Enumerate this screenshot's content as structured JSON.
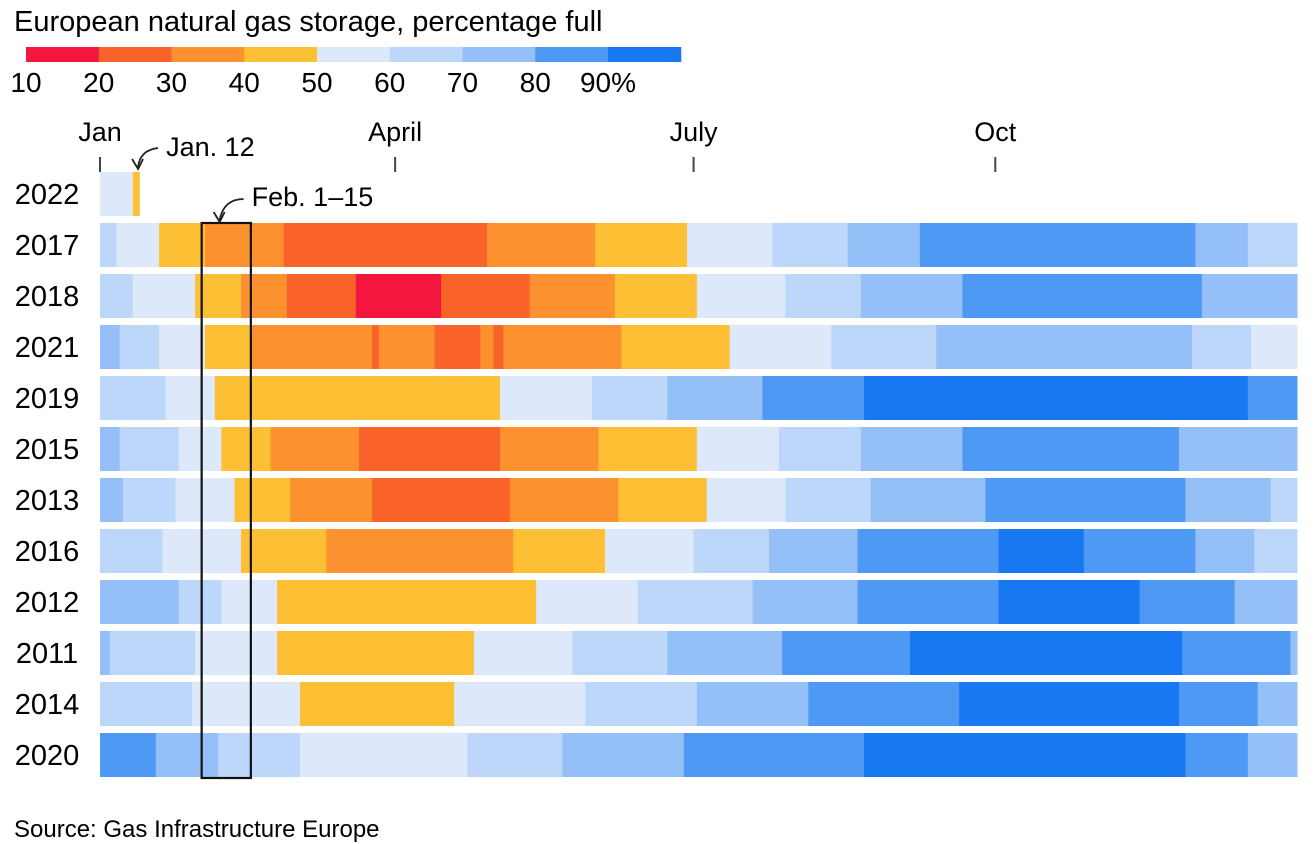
{
  "chart_data": {
    "type": "heatmap",
    "title": "European natural gas storage, percentage full",
    "source": "Source: Gas Infrastructure Europe",
    "legend": {
      "ticks": [
        "10",
        "20",
        "30",
        "40",
        "50",
        "60",
        "70",
        "80",
        "90%"
      ],
      "bins": [
        {
          "from": 10,
          "to": 20,
          "color": "#f5163f"
        },
        {
          "from": 20,
          "to": 30,
          "color": "#f9632a"
        },
        {
          "from": 30,
          "to": 40,
          "color": "#fb922f"
        },
        {
          "from": 40,
          "to": 50,
          "color": "#fdbf34"
        },
        {
          "from": 50,
          "to": 60,
          "color": "#dde9fb"
        },
        {
          "from": 60,
          "to": 70,
          "color": "#bcd7fa"
        },
        {
          "from": 70,
          "to": 80,
          "color": "#94c0f7"
        },
        {
          "from": 80,
          "to": 90,
          "color": "#4e99f4"
        },
        {
          "from": 90,
          "to": 100,
          "color": "#1778f2"
        }
      ]
    },
    "x_axis": {
      "type": "day-of-year",
      "range": [
        1,
        366
      ],
      "ticks": [
        {
          "label": "Jan",
          "day": 1
        },
        {
          "label": "April",
          "day": 91
        },
        {
          "label": "July",
          "day": 182
        },
        {
          "label": "Oct",
          "day": 274
        }
      ]
    },
    "annotations": [
      {
        "label": "Jan. 12",
        "day": 12,
        "rows": [
          "2022"
        ]
      },
      {
        "label": "Feb. 1–15",
        "start_day": 32,
        "end_day": 46,
        "rows": [
          "2017",
          "2020"
        ]
      }
    ],
    "rows": [
      {
        "year": "2022",
        "segments": [
          [
            1,
            11,
            55
          ],
          [
            11,
            12,
            45
          ]
        ]
      },
      {
        "year": "2017",
        "segments": [
          [
            1,
            6,
            65
          ],
          [
            6,
            19,
            55
          ],
          [
            19,
            33,
            45
          ],
          [
            33,
            57,
            35
          ],
          [
            57,
            119,
            25
          ],
          [
            119,
            152,
            35
          ],
          [
            152,
            180,
            45
          ],
          [
            180,
            206,
            55
          ],
          [
            206,
            229,
            65
          ],
          [
            229,
            251,
            75
          ],
          [
            251,
            335,
            85
          ],
          [
            335,
            351,
            75
          ],
          [
            351,
            366,
            65
          ]
        ]
      },
      {
        "year": "2018",
        "segments": [
          [
            1,
            11,
            65
          ],
          [
            11,
            30,
            55
          ],
          [
            30,
            44,
            45
          ],
          [
            44,
            58,
            35
          ],
          [
            58,
            79,
            25
          ],
          [
            79,
            105,
            15
          ],
          [
            105,
            132,
            25
          ],
          [
            132,
            158,
            35
          ],
          [
            158,
            183,
            45
          ],
          [
            183,
            210,
            55
          ],
          [
            210,
            233,
            65
          ],
          [
            233,
            264,
            75
          ],
          [
            264,
            337,
            85
          ],
          [
            337,
            366,
            75
          ]
        ]
      },
      {
        "year": "2021",
        "segments": [
          [
            1,
            7,
            75
          ],
          [
            7,
            19,
            65
          ],
          [
            19,
            33,
            55
          ],
          [
            33,
            47,
            45
          ],
          [
            47,
            84,
            35
          ],
          [
            84,
            86,
            25
          ],
          [
            86,
            103,
            35
          ],
          [
            103,
            117,
            25
          ],
          [
            117,
            121,
            35
          ],
          [
            121,
            124,
            25
          ],
          [
            124,
            160,
            35
          ],
          [
            160,
            193,
            45
          ],
          [
            193,
            224,
            55
          ],
          [
            224,
            256,
            65
          ],
          [
            256,
            334,
            75
          ],
          [
            334,
            352,
            65
          ],
          [
            352,
            366,
            55
          ]
        ]
      },
      {
        "year": "2019",
        "segments": [
          [
            1,
            21,
            65
          ],
          [
            21,
            36,
            55
          ],
          [
            36,
            123,
            45
          ],
          [
            123,
            151,
            55
          ],
          [
            151,
            174,
            65
          ],
          [
            174,
            203,
            75
          ],
          [
            203,
            234,
            85
          ],
          [
            234,
            351,
            95
          ],
          [
            351,
            366,
            85
          ]
        ]
      },
      {
        "year": "2015",
        "segments": [
          [
            1,
            7,
            75
          ],
          [
            7,
            25,
            65
          ],
          [
            25,
            38,
            55
          ],
          [
            38,
            53,
            45
          ],
          [
            53,
            80,
            35
          ],
          [
            80,
            123,
            25
          ],
          [
            123,
            153,
            35
          ],
          [
            153,
            183,
            45
          ],
          [
            183,
            208,
            55
          ],
          [
            208,
            233,
            65
          ],
          [
            233,
            264,
            75
          ],
          [
            264,
            330,
            85
          ],
          [
            330,
            366,
            75
          ]
        ]
      },
      {
        "year": "2013",
        "segments": [
          [
            1,
            8,
            75
          ],
          [
            8,
            24,
            65
          ],
          [
            24,
            42,
            55
          ],
          [
            42,
            59,
            45
          ],
          [
            59,
            84,
            35
          ],
          [
            84,
            126,
            25
          ],
          [
            126,
            159,
            35
          ],
          [
            159,
            186,
            45
          ],
          [
            186,
            210,
            55
          ],
          [
            210,
            236,
            65
          ],
          [
            236,
            271,
            75
          ],
          [
            271,
            332,
            85
          ],
          [
            332,
            358,
            75
          ],
          [
            358,
            366,
            65
          ]
        ]
      },
      {
        "year": "2016",
        "segments": [
          [
            1,
            20,
            65
          ],
          [
            20,
            44,
            55
          ],
          [
            44,
            70,
            45
          ],
          [
            70,
            127,
            35
          ],
          [
            127,
            155,
            45
          ],
          [
            155,
            182,
            55
          ],
          [
            182,
            205,
            65
          ],
          [
            205,
            232,
            75
          ],
          [
            232,
            275,
            85
          ],
          [
            275,
            301,
            95
          ],
          [
            301,
            304,
            85
          ],
          [
            304,
            335,
            85
          ],
          [
            335,
            353,
            75
          ],
          [
            353,
            366,
            65
          ]
        ]
      },
      {
        "year": "2012",
        "segments": [
          [
            1,
            25,
            75
          ],
          [
            25,
            38,
            65
          ],
          [
            38,
            55,
            55
          ],
          [
            55,
            134,
            45
          ],
          [
            134,
            165,
            55
          ],
          [
            165,
            200,
            65
          ],
          [
            200,
            232,
            75
          ],
          [
            232,
            275,
            85
          ],
          [
            275,
            318,
            95
          ],
          [
            318,
            347,
            85
          ],
          [
            347,
            366,
            75
          ]
        ]
      },
      {
        "year": "2011",
        "segments": [
          [
            1,
            4,
            75
          ],
          [
            4,
            30,
            65
          ],
          [
            30,
            55,
            55
          ],
          [
            55,
            115,
            45
          ],
          [
            115,
            145,
            55
          ],
          [
            145,
            174,
            65
          ],
          [
            174,
            209,
            75
          ],
          [
            209,
            248,
            85
          ],
          [
            248,
            331,
            95
          ],
          [
            331,
            364,
            85
          ],
          [
            364,
            366,
            75
          ]
        ]
      },
      {
        "year": "2014",
        "segments": [
          [
            1,
            29,
            65
          ],
          [
            29,
            62,
            55
          ],
          [
            62,
            109,
            45
          ],
          [
            109,
            149,
            55
          ],
          [
            149,
            183,
            65
          ],
          [
            183,
            217,
            75
          ],
          [
            217,
            263,
            85
          ],
          [
            263,
            330,
            95
          ],
          [
            330,
            354,
            85
          ],
          [
            354,
            366,
            75
          ]
        ]
      },
      {
        "year": "2020",
        "segments": [
          [
            1,
            18,
            85
          ],
          [
            18,
            37,
            75
          ],
          [
            37,
            45,
            65
          ],
          [
            45,
            62,
            65
          ],
          [
            62,
            113,
            55
          ],
          [
            113,
            142,
            65
          ],
          [
            142,
            179,
            75
          ],
          [
            179,
            234,
            85
          ],
          [
            234,
            332,
            95
          ],
          [
            332,
            351,
            85
          ],
          [
            351,
            366,
            75
          ]
        ]
      }
    ]
  }
}
